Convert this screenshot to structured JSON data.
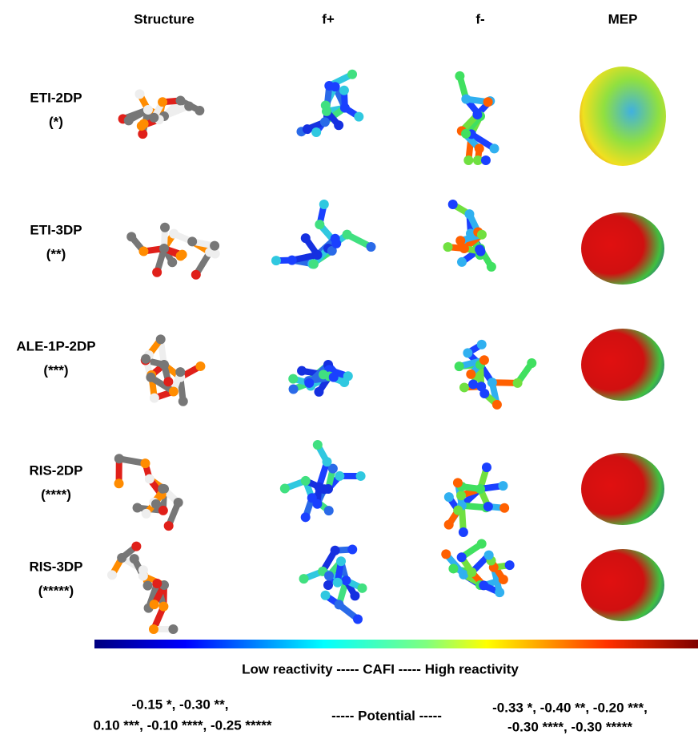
{
  "columns": [
    "Structure",
    "f+",
    "f-",
    "MEP"
  ],
  "rows": [
    {
      "name": "ETI-2DP",
      "note": "(*)"
    },
    {
      "name": "ETI-3DP",
      "note": "(**)"
    },
    {
      "name": "ALE-1P-2DP",
      "note": "(***)"
    },
    {
      "name": "RIS-2DP",
      "note": "(****)"
    },
    {
      "name": "RIS-3DP",
      "note": "(*****)"
    }
  ],
  "colorbar_caption": "Low reactivity ----- CAFI ----- High reactivity",
  "potential": {
    "left": [
      "-0.15 *, -0.30 **,",
      "0.10 ***, -0.10 ****, -0.25 *****"
    ],
    "middle": "----- Potential -----",
    "right": [
      "-0.33 *, -0.40 **, -0.20 ***,",
      "-0.30 ****, -0.30 *****"
    ]
  }
}
